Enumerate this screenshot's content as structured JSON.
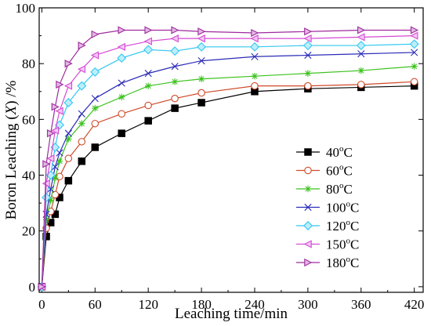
{
  "chart_data": {
    "type": "line",
    "xlabel": "Leaching time/min",
    "ylabel_prefix": "Boron Leaching (",
    "ylabel_var": "X",
    "ylabel_suffix": ") /%",
    "xlim": [
      -3,
      430
    ],
    "ylim": [
      -2,
      100
    ],
    "xticks": [
      0,
      60,
      120,
      180,
      240,
      300,
      360,
      420
    ],
    "xtick_labels": [
      "0",
      "60",
      "120",
      "180",
      "240",
      "300",
      "360",
      "420"
    ],
    "yticks": [
      0,
      20,
      40,
      60,
      80,
      100
    ],
    "ytick_labels": [
      "0",
      "20",
      "40",
      "60",
      "80",
      "100"
    ],
    "legend_position": "right",
    "x": [
      0,
      5,
      10,
      15,
      20,
      30,
      45,
      60,
      90,
      120,
      150,
      180,
      240,
      300,
      360,
      420
    ],
    "series": [
      {
        "name": "40",
        "unit": "oC",
        "color": "#000000",
        "marker": "square",
        "values": [
          0,
          18,
          23,
          26,
          32,
          38,
          45,
          50,
          55,
          59.5,
          64,
          66,
          70,
          71,
          71.5,
          72
        ]
      },
      {
        "name": "60",
        "unit": "oC",
        "color": "#d04a2a",
        "marker": "circle",
        "values": [
          0,
          21,
          27,
          33,
          39.5,
          46,
          52,
          58.5,
          62,
          65,
          67.5,
          69.5,
          72,
          72,
          72.5,
          73.5
        ]
      },
      {
        "name": "80",
        "unit": "oC",
        "color": "#3cc21e",
        "marker": "asterisk",
        "values": [
          0,
          24,
          31,
          39,
          45,
          53,
          58.5,
          64,
          68,
          72,
          73.5,
          74.5,
          75.5,
          76.5,
          77.5,
          79
        ]
      },
      {
        "name": "100",
        "unit": "oC",
        "color": "#2b2bb8",
        "marker": "x",
        "values": [
          0,
          26,
          35,
          43,
          48,
          55,
          62,
          67.5,
          73,
          76.5,
          79,
          81,
          82.5,
          83,
          83.5,
          84
        ]
      },
      {
        "name": "120",
        "unit": "oC",
        "color": "#33c8f0",
        "marker": "diamond",
        "values": [
          0,
          32,
          40,
          50,
          58,
          66,
          72,
          77,
          82,
          85,
          84.5,
          86,
          86,
          86.5,
          86.5,
          87
        ]
      },
      {
        "name": "150",
        "unit": "oC",
        "color": "#d44ad4",
        "marker": "tri-left",
        "values": [
          0,
          37,
          46,
          56,
          63,
          72,
          78,
          83,
          86,
          88,
          89,
          89,
          89,
          89,
          89.5,
          90
        ]
      },
      {
        "name": "180",
        "unit": "oC",
        "color": "#9e2a9e",
        "marker": "tri-right",
        "values": [
          0,
          44,
          55,
          64.5,
          72.5,
          80,
          86.5,
          90.5,
          92,
          92,
          92,
          91.5,
          91,
          91.5,
          92,
          92
        ]
      }
    ]
  }
}
